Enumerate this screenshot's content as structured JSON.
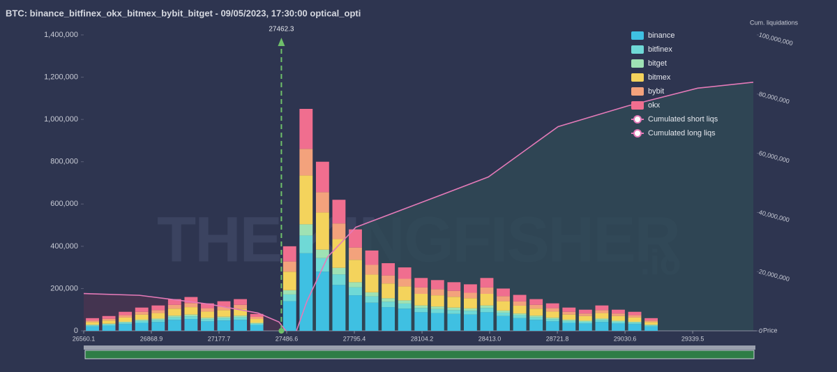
{
  "chart_data": {
    "type": "bar",
    "stacked": true,
    "title": "BTC: binance_bitfinex_okx_bitmex_bybit_bitget - 09/05/2023, 17:30:00 optical_opti",
    "x_label": "Price",
    "y2_label": "Cum. liquidations",
    "watermark": "THE KINGFISHER",
    "watermark_suffix": ".io",
    "annotation_price": 27462.3,
    "xlim": [
      26560.1,
      29632
    ],
    "xticks": [
      26560.1,
      26868.9,
      27177.7,
      27486.6,
      27795.4,
      28104.2,
      {
        "value": 28413,
        "label": "28413.0"
      },
      28721.8,
      29030.6,
      29339.5
    ],
    "ylim": [
      0,
      1400000
    ],
    "yticks": [
      0,
      {
        "value": 200000,
        "label": "200,000"
      },
      {
        "value": 400000,
        "label": "400,000"
      },
      {
        "value": 600000,
        "label": "600,000"
      },
      {
        "value": 800000,
        "label": "800,000"
      },
      {
        "value": 1000000,
        "label": "1,000,000"
      },
      {
        "value": 1200000,
        "label": "1,200,000"
      },
      {
        "value": 1400000,
        "label": "1,400,000"
      }
    ],
    "y2lim": [
      0,
      100000000
    ],
    "y2ticks": [
      0,
      {
        "value": 20000000,
        "label": "20,000,000"
      },
      {
        "value": 40000000,
        "label": "40,000,000"
      },
      {
        "value": 60000000,
        "label": "60,000,000"
      },
      {
        "value": 80000000,
        "label": "80,000,000"
      },
      {
        "value": 100000000,
        "label": "100,000,000"
      }
    ],
    "x": [
      26600,
      26675,
      26750,
      26825,
      26900,
      26975,
      27050,
      27125,
      27200,
      27275,
      27350,
      27425,
      27500,
      27575,
      27650,
      27725,
      27800,
      27875,
      27950,
      28025,
      28100,
      28175,
      28250,
      28325,
      28400,
      28475,
      28550,
      28625,
      28700,
      28775,
      28850,
      28925,
      29000,
      29075,
      29150
    ],
    "series": [
      {
        "name": "binance",
        "color": "#3fc0e2",
        "values": [
          21000,
          25000,
          32000,
          38000,
          42000,
          52000,
          56000,
          45000,
          49000,
          52000,
          28000,
          0,
          140000,
          367000,
          280000,
          217000,
          168000,
          133000,
          112000,
          105000,
          88000,
          84000,
          80000,
          77000,
          88000,
          70000,
          60000,
          52000,
          45000,
          38000,
          35000,
          42000,
          35000,
          32000,
          21000
        ]
      },
      {
        "name": "bitfinex",
        "color": "#6fd9d6",
        "values": [
          5000,
          6000,
          7000,
          9000,
          10000,
          12000,
          13000,
          10000,
          11000,
          12000,
          6000,
          0,
          32000,
          84000,
          64000,
          50000,
          38000,
          30000,
          26000,
          24000,
          20000,
          19000,
          18000,
          18000,
          20000,
          16000,
          14000,
          12000,
          10000,
          9000,
          8000,
          10000,
          8000,
          7000,
          5000
        ]
      },
      {
        "name": "bitget",
        "color": "#9fe2b4",
        "values": [
          3000,
          3000,
          4000,
          6000,
          6000,
          8000,
          8000,
          7000,
          7000,
          8000,
          4000,
          0,
          20000,
          53000,
          40000,
          31000,
          24000,
          19000,
          16000,
          15000,
          12000,
          12000,
          12000,
          11000,
          12000,
          10000,
          8000,
          8000,
          7000,
          6000,
          5000,
          6000,
          5000,
          4000,
          3000
        ]
      },
      {
        "name": "bitmex",
        "color": "#f4d35c",
        "values": [
          13000,
          15000,
          20000,
          24000,
          26000,
          33000,
          35000,
          29000,
          31000,
          33000,
          18000,
          0,
          88000,
          231000,
          176000,
          136000,
          106000,
          84000,
          70000,
          66000,
          55000,
          53000,
          51000,
          48000,
          55000,
          44000,
          37000,
          33000,
          29000,
          24000,
          22000,
          26000,
          22000,
          20000,
          13000
        ]
      },
      {
        "name": "bybit",
        "color": "#f3a27c",
        "values": [
          7000,
          8000,
          11000,
          13000,
          14000,
          18000,
          19000,
          16000,
          17000,
          18000,
          10000,
          0,
          48000,
          126000,
          96000,
          74000,
          58000,
          46000,
          38000,
          36000,
          30000,
          29000,
          28000,
          26000,
          30000,
          24000,
          20000,
          18000,
          16000,
          13000,
          12000,
          14000,
          12000,
          11000,
          7000
        ]
      },
      {
        "name": "okx",
        "color": "#f06e8f",
        "values": [
          11000,
          13000,
          16000,
          20000,
          22000,
          27000,
          29000,
          23000,
          25000,
          27000,
          14000,
          0,
          72000,
          189000,
          144000,
          112000,
          86000,
          68000,
          58000,
          54000,
          45000,
          43000,
          41000,
          40000,
          45000,
          36000,
          31000,
          27000,
          23000,
          20000,
          18000,
          22000,
          18000,
          16000,
          11000
        ]
      },
      {
        "name": "Cumulated short liqs",
        "type": "line",
        "axis": "y2",
        "color": "#e47ab8",
        "x": [
          27531,
          27579,
          27674,
          27802,
          28088,
          28407,
          28725,
          29043,
          29362,
          29616
        ],
        "values": [
          0,
          10000000,
          25000000,
          35000000,
          43000000,
          52000000,
          69000000,
          76000000,
          82000000,
          84000000
        ]
      },
      {
        "name": "Cumulated long liqs",
        "type": "line",
        "axis": "y2",
        "color": "#e47ab8",
        "x": [
          26560.1,
          26815,
          27133,
          27356,
          27451,
          27483
        ],
        "values": [
          12600000,
          12000000,
          9000000,
          6000000,
          3000000,
          0
        ]
      }
    ]
  }
}
